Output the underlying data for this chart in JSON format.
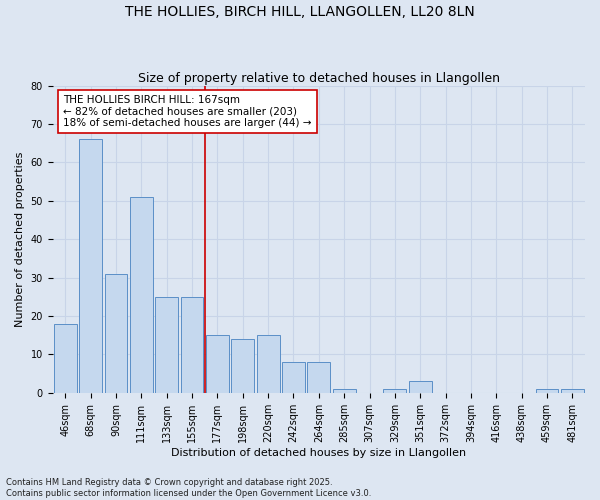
{
  "title": "THE HOLLIES, BIRCH HILL, LLANGOLLEN, LL20 8LN",
  "subtitle": "Size of property relative to detached houses in Llangollen",
  "xlabel": "Distribution of detached houses by size in Llangollen",
  "ylabel": "Number of detached properties",
  "bins": [
    "46sqm",
    "68sqm",
    "90sqm",
    "111sqm",
    "133sqm",
    "155sqm",
    "177sqm",
    "198sqm",
    "220sqm",
    "242sqm",
    "264sqm",
    "285sqm",
    "307sqm",
    "329sqm",
    "351sqm",
    "372sqm",
    "394sqm",
    "416sqm",
    "438sqm",
    "459sqm",
    "481sqm"
  ],
  "values": [
    18,
    66,
    31,
    51,
    25,
    25,
    15,
    14,
    15,
    8,
    8,
    1,
    0,
    1,
    3,
    0,
    0,
    0,
    0,
    1,
    1
  ],
  "bar_color": "#c5d8ee",
  "bar_edge_color": "#5b8fc7",
  "bg_color": "#dde6f2",
  "grid_color": "#c8d4e8",
  "vline_x_index": 6,
  "vline_color": "#cc0000",
  "annotation_text": "THE HOLLIES BIRCH HILL: 167sqm\n← 82% of detached houses are smaller (203)\n18% of semi-detached houses are larger (44) →",
  "annotation_box_facecolor": "#ffffff",
  "annotation_box_edgecolor": "#cc0000",
  "footnote": "Contains HM Land Registry data © Crown copyright and database right 2025.\nContains public sector information licensed under the Open Government Licence v3.0.",
  "ylim": [
    0,
    80
  ],
  "yticks": [
    0,
    10,
    20,
    30,
    40,
    50,
    60,
    70,
    80
  ],
  "title_fontsize": 10,
  "subtitle_fontsize": 9,
  "axis_label_fontsize": 8,
  "tick_fontsize": 7,
  "annotation_fontsize": 7.5,
  "footnote_fontsize": 6
}
